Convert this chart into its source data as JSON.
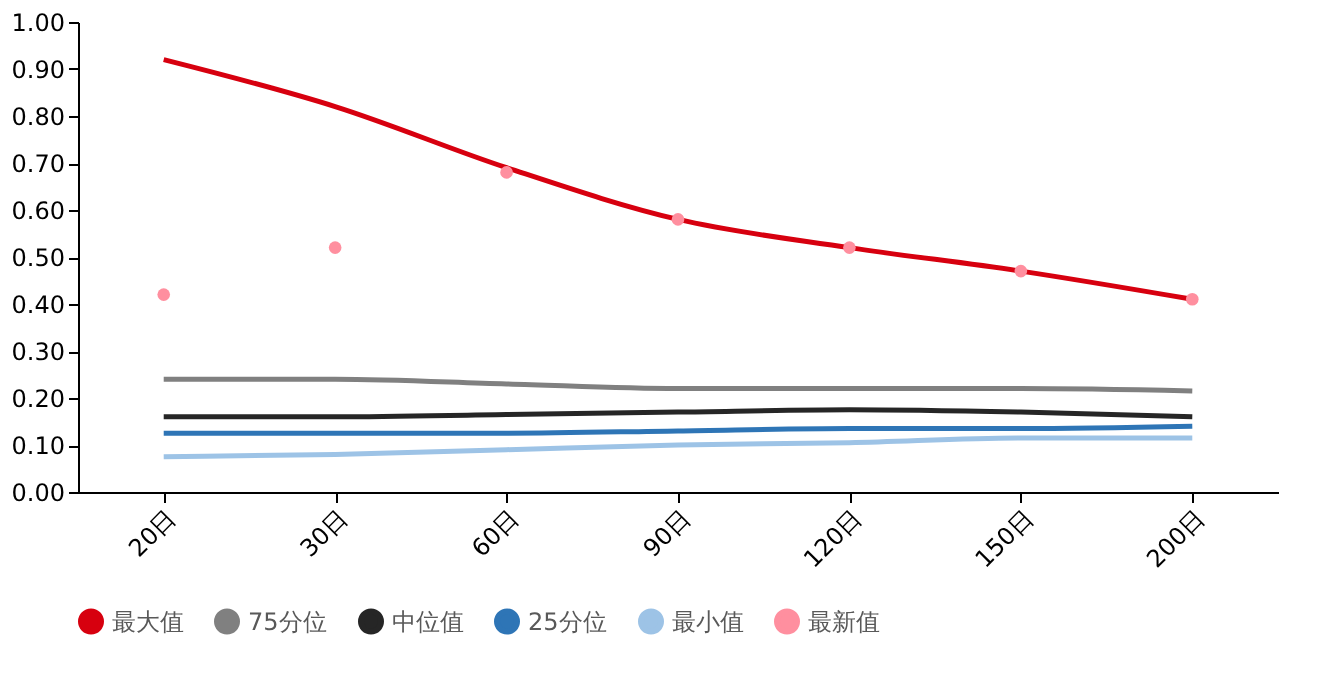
{
  "chart_data": {
    "type": "line",
    "categories": [
      "20日",
      "30日",
      "60日",
      "90日",
      "120日",
      "150日",
      "200日"
    ],
    "series": [
      {
        "name": "最大值",
        "color": "#d7000f",
        "values": [
          0.92,
          0.82,
          0.69,
          0.58,
          0.52,
          0.47,
          0.41
        ]
      },
      {
        "name": "75分位",
        "color": "#808080",
        "values": [
          0.24,
          0.24,
          0.23,
          0.22,
          0.22,
          0.22,
          0.215
        ]
      },
      {
        "name": "中位值",
        "color": "#262626",
        "values": [
          0.16,
          0.16,
          0.165,
          0.17,
          0.175,
          0.17,
          0.16
        ]
      },
      {
        "name": "25分位",
        "color": "#2e75b6",
        "values": [
          0.125,
          0.125,
          0.125,
          0.13,
          0.135,
          0.135,
          0.14
        ]
      },
      {
        "name": "最小值",
        "color": "#9dc3e6",
        "values": [
          0.075,
          0.08,
          0.09,
          0.1,
          0.105,
          0.115,
          0.115
        ]
      },
      {
        "name": "最新值",
        "color": "#ff8f9f",
        "type": "scatter",
        "marker": "circle",
        "values": [
          0.42,
          0.52,
          0.68,
          0.58,
          0.52,
          0.47,
          0.41
        ]
      }
    ],
    "ylim": [
      0,
      1
    ],
    "yticks": [
      {
        "value": 0,
        "label": "0.00"
      },
      {
        "value": 0.1,
        "label": "0.10"
      },
      {
        "value": 0.2,
        "label": "0.20"
      },
      {
        "value": 0.3,
        "label": "0.30"
      },
      {
        "value": 0.4,
        "label": "0.40"
      },
      {
        "value": 0.5,
        "label": "0.50"
      },
      {
        "value": 0.6,
        "label": "0.60"
      },
      {
        "value": 0.7,
        "label": "0.70"
      },
      {
        "value": 0.8,
        "label": "0.80"
      },
      {
        "value": 0.9,
        "label": "0.90"
      },
      {
        "value": 1.0,
        "label": "1.00"
      }
    ],
    "grid": false,
    "legend": "bottom"
  }
}
